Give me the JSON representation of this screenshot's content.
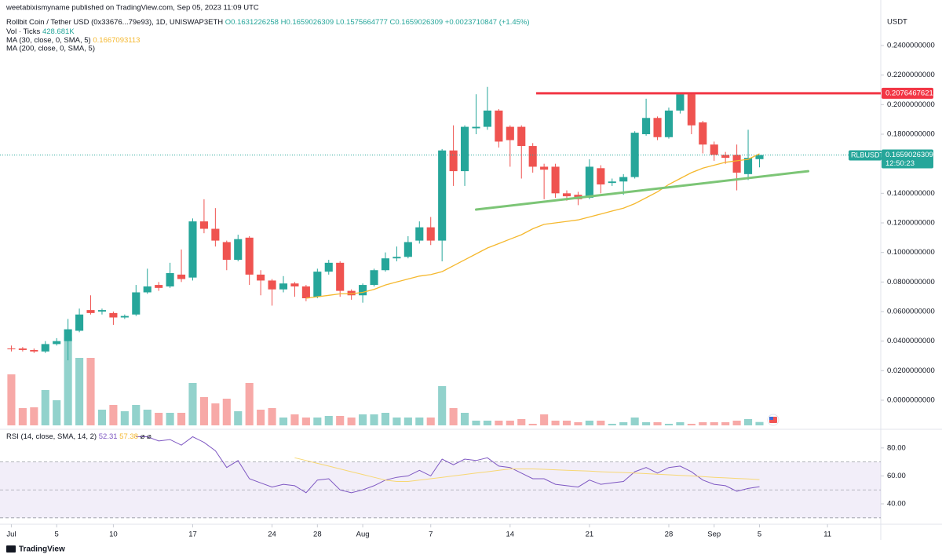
{
  "header": {
    "published": "weetabixismyname published on TradingView.com, Sep 05, 2023 11:09 UTC",
    "symbol": "Rollbit Coin / Tether USD (0x33676...79e93), 1D, UNISWAP3ETH",
    "ohlc": "O0.1631226258 H0.1659026309 L0.1575664777 C0.1659026309 +0.0023710847 (+1.45%)",
    "footer": "TradingView"
  },
  "chart_data": [
    {
      "type": "candlestick",
      "axis_label": "USDT",
      "up_color": "#26a69a",
      "down_color": "#ef5350",
      "xlim": [
        -1,
        76.7
      ],
      "xticks": [
        {
          "value": 0,
          "label": "Jul"
        },
        {
          "value": 4,
          "label": "5"
        },
        {
          "value": 9,
          "label": "10"
        },
        {
          "value": 16,
          "label": "17"
        },
        {
          "value": 23,
          "label": "24"
        },
        {
          "value": 27,
          "label": "28"
        },
        {
          "value": 31,
          "label": "Aug"
        },
        {
          "value": 37,
          "label": "7"
        },
        {
          "value": 44,
          "label": "14"
        },
        {
          "value": 51,
          "label": "21"
        },
        {
          "value": 58,
          "label": "28"
        },
        {
          "value": 62,
          "label": "Sep"
        },
        {
          "value": 66,
          "label": "5"
        },
        {
          "value": 72,
          "label": "11"
        }
      ],
      "ylim": [
        -0.0186,
        0.2708
      ],
      "yticks": [
        {
          "value": 0,
          "label": "0.0000000000"
        },
        {
          "value": 0.02,
          "label": "0.0200000000"
        },
        {
          "value": 0.04,
          "label": "0.0400000000"
        },
        {
          "value": 0.06,
          "label": "0.0600000000"
        },
        {
          "value": 0.08,
          "label": "0.0800000000"
        },
        {
          "value": 0.1,
          "label": "0.1000000000"
        },
        {
          "value": 0.12,
          "label": "0.1200000000"
        },
        {
          "value": 0.14,
          "label": "0.1400000000"
        },
        {
          "value": 0.18,
          "label": "0.1800000000"
        },
        {
          "value": 0.2,
          "label": "0.2000000000"
        },
        {
          "value": 0.22,
          "label": "0.2200000000"
        },
        {
          "value": 0.24,
          "label": "0.2400000000"
        }
      ],
      "open": [
        0.035,
        0.035,
        0.034,
        0.033,
        0.038,
        0.04,
        0.047,
        0.061,
        0.06,
        0.059,
        0.056,
        0.058,
        0.073,
        0.078,
        0.077,
        0.085,
        0.083,
        0.121,
        0.116,
        0.107,
        0.095,
        0.11,
        0.085,
        0.081,
        0.075,
        0.079,
        0.077,
        0.07,
        0.087,
        0.093,
        0.074,
        0.071,
        0.078,
        0.088,
        0.096,
        0.097,
        0.108,
        0.117,
        0.108,
        0.169,
        0.155,
        0.184,
        0.185,
        0.196,
        0.185,
        0.185,
        0.172,
        0.158,
        0.158,
        0.14,
        0.139,
        0.137,
        0.157,
        0.147,
        0.148,
        0.151,
        0.18,
        0.191,
        0.178,
        0.196,
        0.207,
        0.188,
        0.173,
        0.166,
        0.166,
        0.153,
        0.1631226258
      ],
      "high": [
        0.037,
        0.036,
        0.035,
        0.04,
        0.042,
        0.055,
        0.062,
        0.071,
        0.062,
        0.06,
        0.058,
        0.078,
        0.089,
        0.08,
        0.093,
        0.102,
        0.123,
        0.136,
        0.13,
        0.108,
        0.112,
        0.111,
        0.088,
        0.082,
        0.084,
        0.08,
        0.078,
        0.089,
        0.095,
        0.094,
        0.075,
        0.079,
        0.089,
        0.1,
        0.104,
        0.111,
        0.121,
        0.124,
        0.17,
        0.186,
        0.186,
        0.207,
        0.212,
        0.197,
        0.186,
        0.186,
        0.174,
        0.16,
        0.16,
        0.142,
        0.141,
        0.163,
        0.159,
        0.15,
        0.153,
        0.182,
        0.204,
        0.192,
        0.198,
        0.208,
        0.208,
        0.189,
        0.175,
        0.168,
        0.173,
        0.183,
        0.1659026309
      ],
      "low": [
        0.033,
        0.033,
        0.032,
        0.032,
        0.037,
        0.027,
        0.046,
        0.058,
        0.058,
        0.051,
        0.055,
        0.057,
        0.072,
        0.074,
        0.076,
        0.08,
        0.081,
        0.113,
        0.104,
        0.088,
        0.094,
        0.078,
        0.071,
        0.064,
        0.073,
        0.07,
        0.067,
        0.069,
        0.085,
        0.07,
        0.068,
        0.066,
        0.077,
        0.087,
        0.094,
        0.096,
        0.106,
        0.105,
        0.094,
        0.145,
        0.145,
        0.18,
        0.183,
        0.171,
        0.158,
        0.15,
        0.154,
        0.136,
        0.137,
        0.135,
        0.132,
        0.136,
        0.14,
        0.145,
        0.139,
        0.15,
        0.179,
        0.176,
        0.177,
        0.194,
        0.18,
        0.167,
        0.162,
        0.16,
        0.142,
        0.149,
        0.1575664777
      ],
      "close": [
        0.0345,
        0.034,
        0.033,
        0.038,
        0.04,
        0.048,
        0.058,
        0.059,
        0.061,
        0.056,
        0.057,
        0.073,
        0.077,
        0.076,
        0.086,
        0.082,
        0.121,
        0.116,
        0.108,
        0.095,
        0.109,
        0.085,
        0.081,
        0.075,
        0.079,
        0.077,
        0.069,
        0.087,
        0.093,
        0.074,
        0.071,
        0.078,
        0.088,
        0.096,
        0.097,
        0.107,
        0.117,
        0.108,
        0.169,
        0.155,
        0.185,
        0.185,
        0.196,
        0.175,
        0.176,
        0.172,
        0.158,
        0.156,
        0.14,
        0.138,
        0.136,
        0.158,
        0.146,
        0.148,
        0.151,
        0.181,
        0.191,
        0.178,
        0.196,
        0.207,
        0.186,
        0.173,
        0.166,
        0.164,
        0.154,
        0.164,
        0.1659026309
      ],
      "volume": {
        "name": "Vol · Ticks",
        "value_label": "428.681K",
        "vlim": [
          0,
          12000000
        ],
        "values": [
          6500000,
          2200000,
          2300000,
          4500000,
          3200000,
          11200000,
          8600000,
          8600000,
          2000000,
          2600000,
          1800000,
          2600000,
          2000000,
          1600000,
          1600000,
          1600000,
          5400000,
          3600000,
          2800000,
          3400000,
          1800000,
          5400000,
          2000000,
          2200000,
          1000000,
          1400000,
          1000000,
          1000000,
          1200000,
          1200000,
          1000000,
          1400000,
          1400000,
          1600000,
          1000000,
          1000000,
          1000000,
          1000000,
          5000000,
          2200000,
          1600000,
          600000,
          600000,
          600000,
          600000,
          800000,
          200000,
          1400000,
          600000,
          600000,
          400000,
          600000,
          600000,
          200000,
          400000,
          1000000,
          400000,
          400000,
          200000,
          400000,
          200000,
          400000,
          400000,
          400000,
          600000,
          800000,
          428681
        ]
      },
      "ma": [
        {
          "name": "MA (30, close, 0, SMA, 5)",
          "value_label": "0.1667093113",
          "color": "#f5b82e",
          "values": [
            null,
            null,
            null,
            null,
            null,
            null,
            null,
            null,
            null,
            null,
            null,
            null,
            null,
            null,
            null,
            null,
            null,
            null,
            null,
            null,
            null,
            null,
            null,
            null,
            null,
            null,
            0.069,
            0.07,
            0.071,
            0.072,
            0.072,
            0.073,
            0.075,
            0.078,
            0.08,
            0.082,
            0.084,
            0.085,
            0.087,
            0.091,
            0.095,
            0.099,
            0.103,
            0.106,
            0.109,
            0.112,
            0.116,
            0.119,
            0.12,
            0.121,
            0.122,
            0.124,
            0.126,
            0.128,
            0.13,
            0.133,
            0.137,
            0.141,
            0.146,
            0.15,
            0.154,
            0.157,
            0.159,
            0.161,
            0.162,
            0.163,
            0.1667093113
          ]
        },
        {
          "name": "MA (200, close, 0, SMA, 5)"
        }
      ],
      "hline": {
        "value": 0.2076467621,
        "label": "0.2076467621",
        "color": "#f23645",
        "x_start": 46.3
      },
      "trendline": {
        "color": "#7cc576",
        "x": [
          41,
          70.3
        ],
        "y": [
          0.129,
          0.155
        ]
      },
      "last_price": {
        "symbol": "RLBUSDT",
        "value": 0.1659026309,
        "label": "0.1659026309",
        "countdown": "12:50:23",
        "color": "#26a69a"
      }
    },
    {
      "type": "line",
      "title": "RSI (14, close, SMA, 14, 2)",
      "legend_values": [
        "52.31",
        "57.38",
        "⌀",
        "⌀"
      ],
      "ylim": [
        25.4,
        92.8
      ],
      "yticks": [
        {
          "value": 40,
          "label": "40.00"
        },
        {
          "value": 60,
          "label": "60.00"
        },
        {
          "value": 80,
          "label": "80.00"
        }
      ],
      "band": [
        30,
        70
      ],
      "midline": 50,
      "series": [
        {
          "name": "RSI",
          "color": "#7e57c2",
          "values": [
            null,
            null,
            null,
            null,
            null,
            null,
            null,
            null,
            null,
            null,
            null,
            88,
            88,
            85,
            86,
            82,
            88,
            84,
            78,
            66,
            71,
            58,
            55,
            52,
            54,
            53,
            48,
            57,
            58,
            50,
            48,
            50,
            53,
            57,
            59,
            60,
            64,
            60,
            72,
            68,
            72,
            71,
            73,
            67,
            66,
            62,
            58,
            58,
            54,
            53,
            52,
            57,
            54,
            55,
            56,
            63,
            66,
            62,
            66,
            67,
            63,
            57,
            54,
            53,
            49,
            51,
            52.31
          ]
        },
        {
          "name": "RSI-based MA",
          "color": "#f7d774",
          "values": [
            null,
            null,
            null,
            null,
            null,
            null,
            null,
            null,
            null,
            null,
            null,
            null,
            null,
            null,
            null,
            null,
            null,
            null,
            null,
            null,
            null,
            null,
            null,
            null,
            null,
            73,
            71,
            69,
            67,
            65,
            63,
            61,
            59,
            57,
            56,
            56,
            57,
            58,
            59,
            60,
            61,
            62,
            63,
            64,
            65,
            65,
            65,
            64.7,
            64.4,
            64,
            63.7,
            63.4,
            63,
            62.7,
            62.4,
            62,
            61.6,
            61.2,
            60.8,
            60.4,
            60,
            59.5,
            59,
            58.6,
            58.2,
            57.8,
            57.38
          ]
        }
      ]
    }
  ]
}
